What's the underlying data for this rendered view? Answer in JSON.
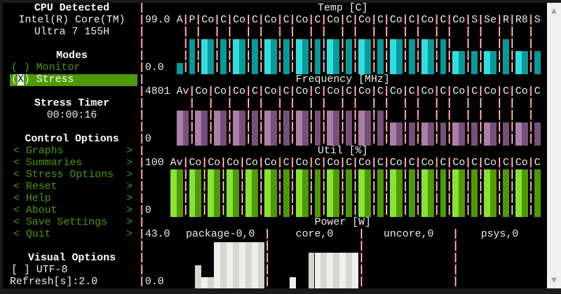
{
  "left": {
    "cpu_heading": "CPU Detected",
    "cpu_line1": "Intel(R) Core(TM)",
    "cpu_line2": "Ultra 7 155H",
    "modes_heading": "Modes",
    "modes": [
      {
        "mark": "( )",
        "label": "Monitor",
        "selected": false
      },
      {
        "mark": "X",
        "label": "Stress",
        "selected": true
      }
    ],
    "timer_heading": "Stress Timer",
    "timer_value": "00:00:16",
    "control_heading": "Control Options",
    "menu": [
      "Graphs",
      "Summaries",
      "Stress Options",
      "Reset",
      "Help",
      "About",
      "Save Settings",
      "Quit"
    ],
    "menu_left": "<",
    "menu_right": ">",
    "visual_heading": "Visual Options",
    "utf8_mark": "[ ]",
    "utf8_label": "UTF-8",
    "refresh": "Refresh[s]:2.0"
  },
  "colors": {
    "temp": [
      "#33dddd",
      "#079a9a"
    ],
    "freq": [
      "#ad7fa8",
      "#75507b"
    ],
    "util": [
      "#8ae234",
      "#4e9a06"
    ],
    "power": [
      "#eeeeec",
      "#d3d7cf"
    ]
  },
  "graphs": [
    {
      "key": "temp",
      "title": "Temp [C]",
      "ymax_label": "99.0",
      "ymin_label": "0.0",
      "max": 99,
      "groups": [
        {
          "label": "A",
          "value": 23
        },
        {
          "label": "P",
          "value": 73
        },
        {
          "label": "Co",
          "value": 73
        },
        {
          "label": "C",
          "value": 73
        },
        {
          "label": "Co",
          "value": 73
        },
        {
          "label": "C",
          "value": 73
        },
        {
          "label": "Co",
          "value": 73
        },
        {
          "label": "C",
          "value": 73
        },
        {
          "label": "Co",
          "value": 73
        },
        {
          "label": "C",
          "value": 73
        },
        {
          "label": "Co",
          "value": 73
        },
        {
          "label": "C",
          "value": 73
        },
        {
          "label": "Co",
          "value": 73
        },
        {
          "label": "C",
          "value": 73
        },
        {
          "label": "Co",
          "value": 73
        },
        {
          "label": "C",
          "value": 73
        },
        {
          "label": "Co",
          "value": 73
        },
        {
          "label": "C",
          "value": 73
        },
        {
          "label": "Co",
          "value": 48
        },
        {
          "label": "S",
          "value": 48
        },
        {
          "label": "Se",
          "value": 48
        },
        {
          "label": "R",
          "value": 73
        },
        {
          "label": "R8",
          "value": 48
        },
        {
          "label": "S",
          "value": 48
        }
      ]
    },
    {
      "key": "freq",
      "title": "Frequency [MHz]",
      "ymax_label": "4801",
      "ymin_label": "0",
      "max": 4801,
      "groups": [
        {
          "label": "Av",
          "value": 3550
        },
        {
          "label": "Co",
          "value": 3550
        },
        {
          "label": "Co",
          "value": 3550
        },
        {
          "label": "Co",
          "value": 3550
        },
        {
          "label": "C",
          "value": 3550
        },
        {
          "label": "Co",
          "value": 3550
        },
        {
          "label": "C",
          "value": 3550
        },
        {
          "label": "Co",
          "value": 3550
        },
        {
          "label": "C",
          "value": 3550
        },
        {
          "label": "Co",
          "value": 3550
        },
        {
          "label": "C",
          "value": 3550
        },
        {
          "label": "Co",
          "value": 3550
        },
        {
          "label": "C",
          "value": 3550
        },
        {
          "label": "Co",
          "value": 2330
        },
        {
          "label": "C",
          "value": 2330
        },
        {
          "label": "Co",
          "value": 2330
        },
        {
          "label": "C",
          "value": 2330
        },
        {
          "label": "Co",
          "value": 2330
        },
        {
          "label": "C",
          "value": 2330
        },
        {
          "label": "Co",
          "value": 2330
        },
        {
          "label": "C",
          "value": 2330
        },
        {
          "label": "Co",
          "value": 2330
        },
        {
          "label": "C",
          "value": 2330
        }
      ]
    },
    {
      "key": "util",
      "title": "Util [%]",
      "ymax_label": "100",
      "ymin_label": "0",
      "max": 100,
      "groups": [
        {
          "label": "Av",
          "value": 100
        },
        {
          "label": "Co",
          "value": 100
        },
        {
          "label": "Co",
          "value": 100
        },
        {
          "label": "Co",
          "value": 100
        },
        {
          "label": "Co",
          "value": 100
        },
        {
          "label": "Co",
          "value": 100
        },
        {
          "label": "C",
          "value": 100
        },
        {
          "label": "Co",
          "value": 100
        },
        {
          "label": "C",
          "value": 100
        },
        {
          "label": "Co",
          "value": 100
        },
        {
          "label": "C",
          "value": 100
        },
        {
          "label": "Co",
          "value": 100
        },
        {
          "label": "C",
          "value": 100
        },
        {
          "label": "Co",
          "value": 100
        },
        {
          "label": "C",
          "value": 100
        },
        {
          "label": "Co",
          "value": 100
        },
        {
          "label": "C",
          "value": 100
        },
        {
          "label": "Co",
          "value": 100
        },
        {
          "label": "C",
          "value": 100
        },
        {
          "label": "Co",
          "value": 100
        },
        {
          "label": "C",
          "value": 100
        },
        {
          "label": "Co",
          "value": 100
        },
        {
          "label": "C",
          "value": 100
        }
      ]
    }
  ],
  "power": {
    "title": "Power [W]",
    "ymax_label": "43.0",
    "ymin_label": "0.0",
    "max": 43,
    "sections": [
      {
        "label": "package-0,0",
        "values": [
          0,
          0,
          0,
          0,
          0,
          0,
          0,
          0,
          21,
          10,
          10,
          42,
          42,
          42,
          42,
          42,
          42,
          42,
          42
        ]
      },
      {
        "label": "core,0",
        "values": [
          0,
          0,
          0,
          10,
          0,
          0,
          32,
          32,
          32,
          32,
          32,
          32,
          32,
          32
        ]
      },
      {
        "label": "uncore,0",
        "values": [
          0,
          0,
          0,
          0,
          0,
          0,
          0,
          0,
          0,
          0,
          0,
          0,
          0,
          0
        ]
      },
      {
        "label": "psys,0",
        "values": [
          0,
          0,
          0,
          0,
          0,
          0,
          0,
          0,
          0,
          0,
          0,
          0,
          0
        ]
      }
    ]
  }
}
